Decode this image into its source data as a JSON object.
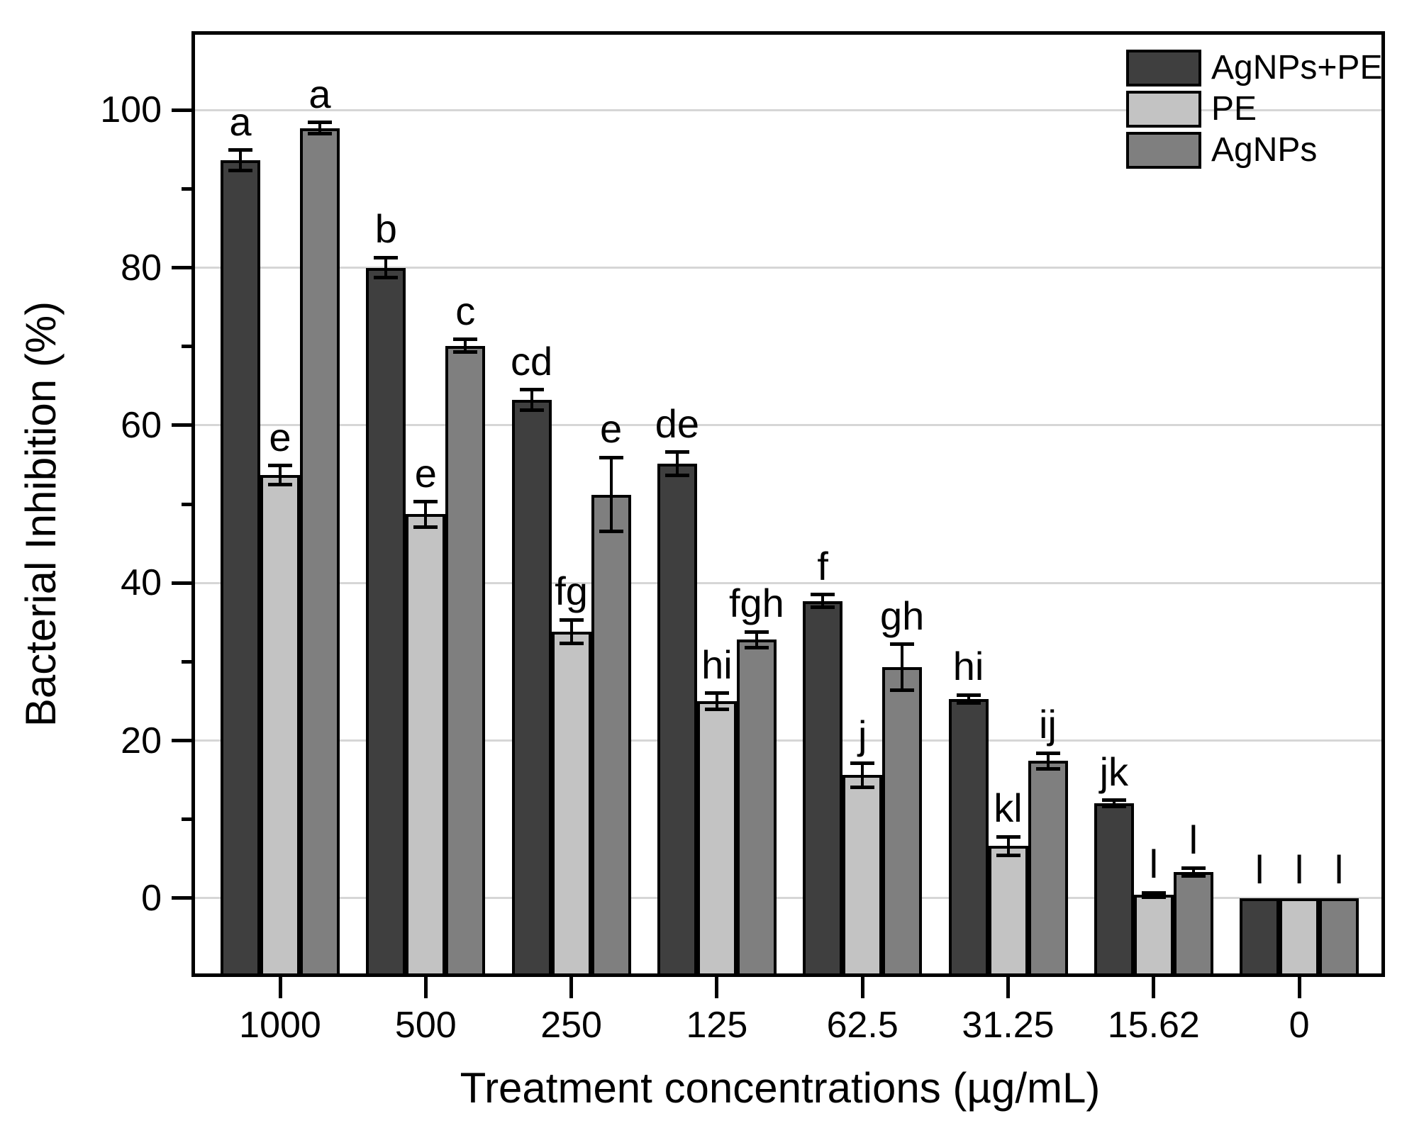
{
  "chart_data": {
    "type": "bar",
    "title": "",
    "xlabel": "Treatment concentrations (µg/mL)",
    "ylabel": "Bacterial Inhibition (%)",
    "x_axis_categories_unit": "µg/mL",
    "categories": [
      "1000",
      "500",
      "250",
      "125",
      "62.5",
      "31.25",
      "15.62",
      "0"
    ],
    "series": [
      {
        "name": "AgNPs+PE",
        "color": "#3f3f3f",
        "values": [
          93.6,
          80.0,
          63.2,
          55.1,
          37.7,
          25.3,
          12.0,
          0
        ],
        "errors": [
          1.3,
          1.3,
          1.3,
          1.5,
          0.8,
          0.5,
          0.4,
          0
        ],
        "letters": [
          "a",
          "b",
          "cd",
          "de",
          "f",
          "hi",
          "jk",
          "l"
        ]
      },
      {
        "name": "PE",
        "color": "#c3c3c3",
        "values": [
          53.7,
          48.7,
          33.8,
          25.0,
          15.6,
          6.6,
          0.4,
          0
        ],
        "errors": [
          1.2,
          1.6,
          1.5,
          1.0,
          1.5,
          1.2,
          0.3,
          0
        ],
        "letters": [
          "e",
          "e",
          "fg",
          "hi",
          "j",
          "kl",
          "l",
          "l"
        ]
      },
      {
        "name": "AgNPs",
        "color": "#7f7f7f",
        "values": [
          97.7,
          70.1,
          51.2,
          32.8,
          29.3,
          17.4,
          3.3,
          0
        ],
        "errors": [
          0.7,
          0.8,
          4.7,
          1.0,
          2.9,
          1.0,
          0.5,
          0
        ],
        "letters": [
          "a",
          "c",
          "e",
          "fgh",
          "gh",
          "ij",
          "l",
          "l"
        ]
      }
    ],
    "ylim": [
      -10,
      110
    ],
    "yticks_major": [
      0,
      20,
      40,
      60,
      80,
      100
    ],
    "yticks_minor": [
      10,
      30,
      50,
      70,
      90
    ],
    "grid": "horizontal-major-only",
    "grid_color": "#d6d6d6",
    "legend_position": "top-right",
    "bar_outline_color": "#000000",
    "background_color": "#ffffff"
  }
}
